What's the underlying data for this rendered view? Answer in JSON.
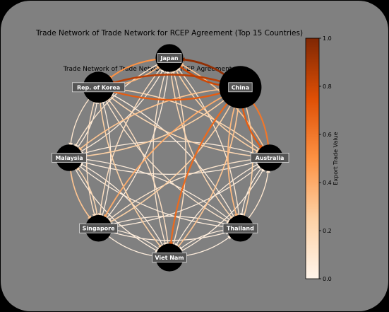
{
  "chart_data": {
    "type": "network",
    "title": "Trade Network of Trade Network for RCEP Agreement (Top 15 Countries)",
    "subtitle": "Trade Network of Trade Network for RCEP Agreement",
    "colorbar": {
      "label": "Export Trade Value",
      "min": 0.0,
      "max": 1.0,
      "ticks": [
        "0.0",
        "0.2",
        "0.4",
        "0.6",
        "0.8",
        "1.0"
      ]
    },
    "nodes": [
      {
        "name": "Japan",
        "size": 0.35
      },
      {
        "name": "China",
        "size": 1.0
      },
      {
        "name": "Australia",
        "size": 0.3
      },
      {
        "name": "Thailand",
        "size": 0.3
      },
      {
        "name": "Viet Nam",
        "size": 0.35
      },
      {
        "name": "Singapore",
        "size": 0.3
      },
      {
        "name": "Malaysia",
        "size": 0.3
      },
      {
        "name": "Rep. of Korea",
        "size": 0.5
      }
    ],
    "edges": [
      {
        "source": "China",
        "target": "Japan",
        "value": 0.95
      },
      {
        "source": "China",
        "target": "Rep. of Korea",
        "value": 0.85
      },
      {
        "source": "Japan",
        "target": "China",
        "value": 0.8
      },
      {
        "source": "Rep. of Korea",
        "target": "China",
        "value": 0.7
      },
      {
        "source": "Japan",
        "target": "Rep. of Korea",
        "value": 0.5
      },
      {
        "source": "Rep. of Korea",
        "target": "Japan",
        "value": 0.35
      },
      {
        "source": "China",
        "target": "Australia",
        "value": 0.7
      },
      {
        "source": "Australia",
        "target": "China",
        "value": 0.6
      },
      {
        "source": "China",
        "target": "Viet Nam",
        "value": 0.65
      },
      {
        "source": "China",
        "target": "Thailand",
        "value": 0.35
      },
      {
        "source": "China",
        "target": "Singapore",
        "value": 0.4
      },
      {
        "source": "China",
        "target": "Malaysia",
        "value": 0.3
      },
      {
        "source": "Japan",
        "target": "Australia",
        "value": 0.25
      },
      {
        "source": "Japan",
        "target": "Thailand",
        "value": 0.2
      },
      {
        "source": "Japan",
        "target": "Viet Nam",
        "value": 0.1
      },
      {
        "source": "Japan",
        "target": "Singapore",
        "value": 0.15
      },
      {
        "source": "Japan",
        "target": "Malaysia",
        "value": 0.1
      },
      {
        "source": "Rep. of Korea",
        "target": "Viet Nam",
        "value": 0.25
      },
      {
        "source": "Rep. of Korea",
        "target": "Singapore",
        "value": 0.15
      },
      {
        "source": "Rep. of Korea",
        "target": "Australia",
        "value": 0.2
      },
      {
        "source": "Rep. of Korea",
        "target": "Malaysia",
        "value": 0.1
      },
      {
        "source": "Rep. of Korea",
        "target": "Thailand",
        "value": 0.1
      },
      {
        "source": "Australia",
        "target": "Japan",
        "value": 0.3
      },
      {
        "source": "Australia",
        "target": "Rep. of Korea",
        "value": 0.2
      },
      {
        "source": "Thailand",
        "target": "China",
        "value": 0.25
      },
      {
        "source": "Viet Nam",
        "target": "China",
        "value": 0.3
      },
      {
        "source": "Singapore",
        "target": "China",
        "value": 0.25
      },
      {
        "source": "Malaysia",
        "target": "China",
        "value": 0.25
      },
      {
        "source": "Malaysia",
        "target": "Singapore",
        "value": 0.3
      },
      {
        "source": "Singapore",
        "target": "Malaysia",
        "value": 0.2
      },
      {
        "source": "Thailand",
        "target": "Viet Nam",
        "value": 0.05
      },
      {
        "source": "Viet Nam",
        "target": "Thailand",
        "value": 0.05
      },
      {
        "source": "Singapore",
        "target": "Viet Nam",
        "value": 0.05
      },
      {
        "source": "Viet Nam",
        "target": "Singapore",
        "value": 0.05
      },
      {
        "source": "Malaysia",
        "target": "Thailand",
        "value": 0.05
      },
      {
        "source": "Thailand",
        "target": "Malaysia",
        "value": 0.05
      },
      {
        "source": "Singapore",
        "target": "Thailand",
        "value": 0.05
      },
      {
        "source": "Thailand",
        "target": "Singapore",
        "value": 0.05
      },
      {
        "source": "Australia",
        "target": "Singapore",
        "value": 0.1
      },
      {
        "source": "Singapore",
        "target": "Australia",
        "value": 0.05
      },
      {
        "source": "Australia",
        "target": "Viet Nam",
        "value": 0.05
      },
      {
        "source": "Viet Nam",
        "target": "Australia",
        "value": 0.05
      },
      {
        "source": "Australia",
        "target": "Thailand",
        "value": 0.05
      },
      {
        "source": "Thailand",
        "target": "Australia",
        "value": 0.1
      },
      {
        "source": "Australia",
        "target": "Malaysia",
        "value": 0.05
      },
      {
        "source": "Malaysia",
        "target": "Australia",
        "value": 0.05
      },
      {
        "source": "Malaysia",
        "target": "Viet Nam",
        "value": 0.05
      },
      {
        "source": "Viet Nam",
        "target": "Malaysia",
        "value": 0.05
      },
      {
        "source": "Viet Nam",
        "target": "Japan",
        "value": 0.15
      },
      {
        "source": "Thailand",
        "target": "Japan",
        "value": 0.1
      },
      {
        "source": "Singapore",
        "target": "Japan",
        "value": 0.05
      },
      {
        "source": "Malaysia",
        "target": "Japan",
        "value": 0.05
      },
      {
        "source": "Viet Nam",
        "target": "Rep. of Korea",
        "value": 0.15
      },
      {
        "source": "Singapore",
        "target": "Rep. of Korea",
        "value": 0.05
      },
      {
        "source": "Malaysia",
        "target": "Rep. of Korea",
        "value": 0.05
      },
      {
        "source": "Thailand",
        "target": "Rep. of Korea",
        "value": 0.05
      }
    ]
  },
  "colors": {
    "background": "#808080",
    "frame": "#000000",
    "node": "#000000",
    "label_box": "#555555",
    "label_text": "#ffffff",
    "cmap_low": "#fff5eb",
    "cmap_high": "#7f2704"
  }
}
